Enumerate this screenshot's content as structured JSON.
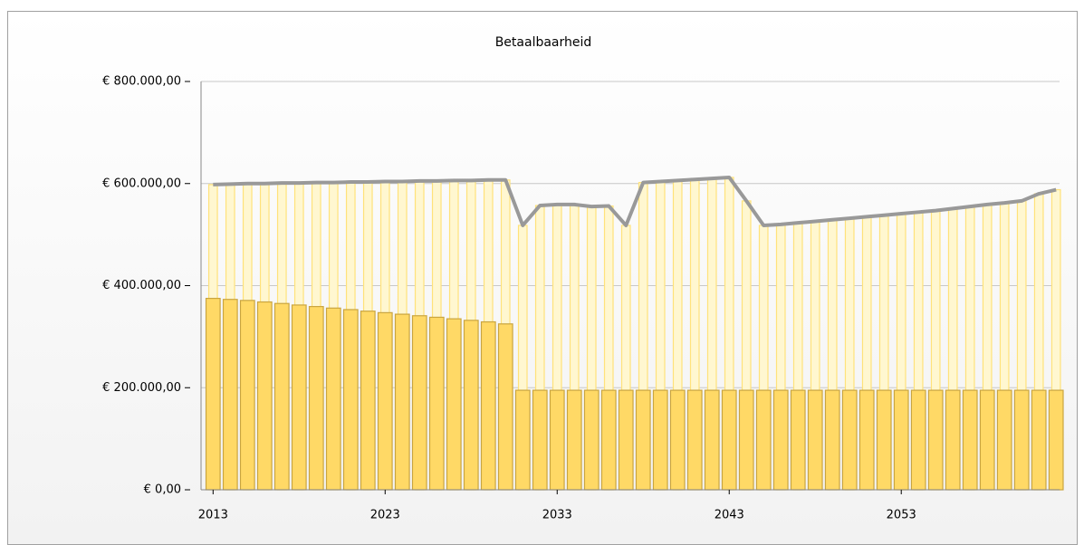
{
  "chart_data": {
    "type": "bar-line",
    "title": "Betaalbaarheid",
    "x": [
      2013,
      2014,
      2015,
      2016,
      2017,
      2018,
      2019,
      2020,
      2021,
      2022,
      2023,
      2024,
      2025,
      2026,
      2027,
      2028,
      2029,
      2030,
      2031,
      2032,
      2033,
      2034,
      2035,
      2036,
      2037,
      2038,
      2039,
      2040,
      2041,
      2042,
      2043,
      2044,
      2045,
      2046,
      2047,
      2048,
      2049,
      2050,
      2051,
      2052,
      2053,
      2054,
      2055,
      2056,
      2057,
      2058,
      2059,
      2060,
      2061,
      2062
    ],
    "xlim": [
      2012.3,
      2062.2
    ],
    "xticks": [
      2013,
      2023,
      2033,
      2043,
      2053
    ],
    "ylim": [
      0,
      800000
    ],
    "yticks": [
      {
        "value": 0,
        "label": "€ 0,00"
      },
      {
        "value": 200000,
        "label": "€ 200.000,00"
      },
      {
        "value": 400000,
        "label": "€ 400.000,00"
      },
      {
        "value": 600000,
        "label": "€ 600.000,00"
      },
      {
        "value": 800000,
        "label": "€ 800.000,00"
      }
    ],
    "grid": true,
    "series": [
      {
        "kind": "bar",
        "color": "#fff7d0",
        "stroke": "#ffe27a",
        "values": [
          598000,
          599000,
          600000,
          600000,
          601000,
          601000,
          602000,
          602000,
          603000,
          603000,
          604000,
          604000,
          605000,
          605000,
          606000,
          606000,
          607000,
          607000,
          518000,
          557000,
          559000,
          559000,
          555000,
          556000,
          518000,
          602000,
          604000,
          606000,
          608000,
          610000,
          612000,
          566000,
          518000,
          520000,
          523000,
          526000,
          529000,
          532000,
          535000,
          538000,
          541000,
          544000,
          547000,
          551000,
          555000,
          559000,
          562000,
          566000,
          580000,
          588000
        ]
      },
      {
        "kind": "bar",
        "color": "#ffd966",
        "stroke": "#c9a540",
        "values": [
          375000,
          373000,
          371000,
          368000,
          365000,
          362000,
          359000,
          356000,
          353000,
          350000,
          347000,
          344000,
          341000,
          338000,
          335000,
          332000,
          329000,
          325000,
          195000,
          195000,
          195000,
          195000,
          195000,
          195000,
          195000,
          195000,
          195000,
          195000,
          195000,
          195000,
          195000,
          195000,
          195000,
          195000,
          195000,
          195000,
          195000,
          195000,
          195000,
          195000,
          195000,
          195000,
          195000,
          195000,
          195000,
          195000,
          195000,
          195000,
          195000,
          195000
        ]
      },
      {
        "kind": "line",
        "color": "#999999",
        "values": [
          598000,
          599000,
          600000,
          600000,
          601000,
          601000,
          602000,
          602000,
          603000,
          603000,
          604000,
          604000,
          605000,
          605000,
          606000,
          606000,
          607000,
          607000,
          518000,
          557000,
          559000,
          559000,
          555000,
          556000,
          518000,
          602000,
          604000,
          606000,
          608000,
          610000,
          612000,
          566000,
          518000,
          520000,
          523000,
          526000,
          529000,
          532000,
          535000,
          538000,
          541000,
          544000,
          547000,
          551000,
          555000,
          559000,
          562000,
          566000,
          580000,
          588000
        ]
      }
    ]
  }
}
